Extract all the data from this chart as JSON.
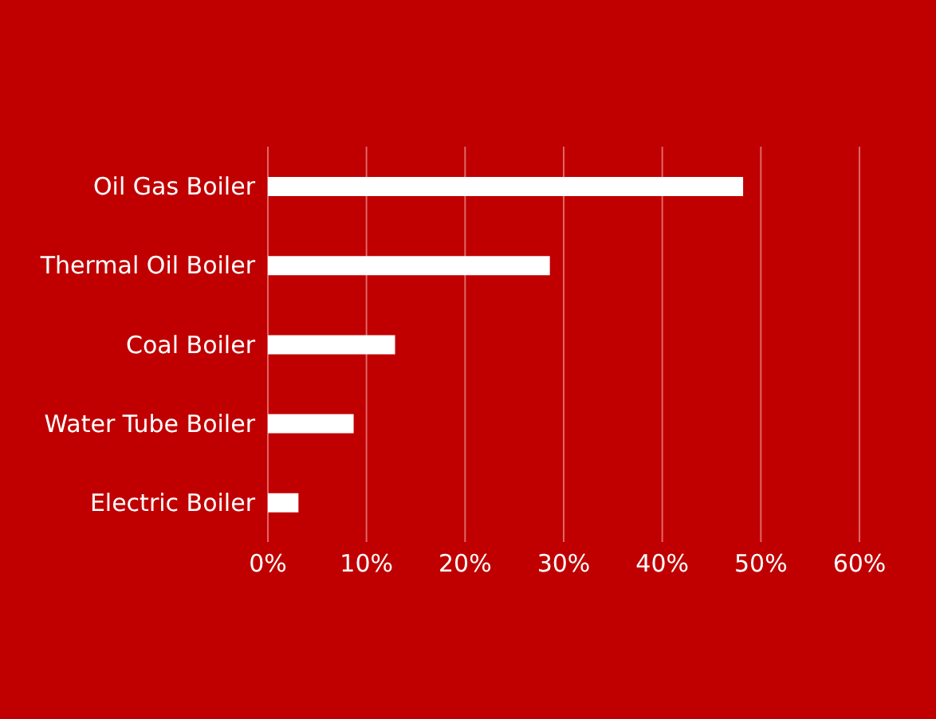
{
  "chart_data": {
    "type": "bar",
    "orientation": "horizontal",
    "categories": [
      "Oil Gas Boiler",
      "Thermal Oil Boiler",
      "Coal Boiler",
      "Water Tube Boiler",
      "Electric Boiler"
    ],
    "values": [
      48.2,
      28.6,
      12.9,
      8.7,
      3.1
    ],
    "color": "#ffffff",
    "xlim": [
      0,
      60
    ],
    "xticks": [
      {
        "value": 0,
        "label": "0%"
      },
      {
        "value": 10,
        "label": "10%"
      },
      {
        "value": 20,
        "label": "20%"
      },
      {
        "value": 30,
        "label": "30%"
      },
      {
        "value": 40,
        "label": "40%"
      },
      {
        "value": 50,
        "label": "50%"
      },
      {
        "value": 60,
        "label": "60%"
      }
    ],
    "grid": "x"
  }
}
